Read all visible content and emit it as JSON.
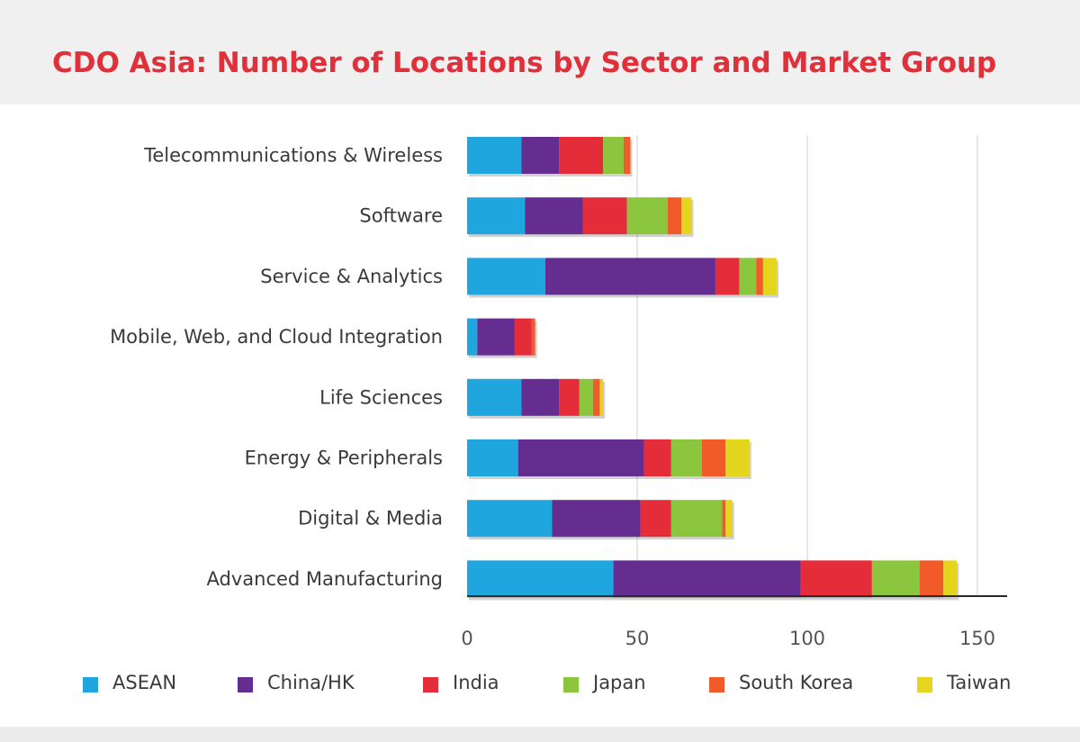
{
  "title": "CDO Asia: Number of Locations by Sector and Market Group",
  "chart_data": {
    "type": "bar",
    "orientation": "horizontal",
    "stacked": true,
    "title": "CDO Asia: Number of Locations by Sector and Market Group",
    "categories": [
      "Telecommunications & Wireless",
      "Software",
      "Service & Analytics",
      "Mobile, Web, and Cloud Integration",
      "Life Sciences",
      "Energy & Peripherals",
      "Digital & Media",
      "Advanced Manufacturing"
    ],
    "series": [
      {
        "name": "ASEAN",
        "color": "#1fa6df",
        "values": [
          16,
          17,
          23,
          3,
          16,
          15,
          25,
          43
        ]
      },
      {
        "name": "China/HK",
        "color": "#662d91",
        "values": [
          11,
          17,
          50,
          11,
          11,
          37,
          26,
          55
        ]
      },
      {
        "name": "India",
        "color": "#e52d3a",
        "values": [
          13,
          13,
          7,
          5,
          6,
          8,
          9,
          21
        ]
      },
      {
        "name": "Japan",
        "color": "#8cc63f",
        "values": [
          6,
          12,
          5,
          0,
          4,
          9,
          15,
          14
        ]
      },
      {
        "name": "South Korea",
        "color": "#f15a29",
        "values": [
          2,
          4,
          2,
          1,
          2,
          7,
          1,
          7
        ]
      },
      {
        "name": "Taiwan",
        "color": "#e5d51e",
        "values": [
          0,
          3,
          4,
          0,
          1,
          7,
          2,
          4
        ]
      }
    ],
    "xlim": [
      0,
      160
    ],
    "xticks": [
      0,
      50,
      100,
      150
    ],
    "grid": "vertical",
    "legend_position": "bottom"
  }
}
